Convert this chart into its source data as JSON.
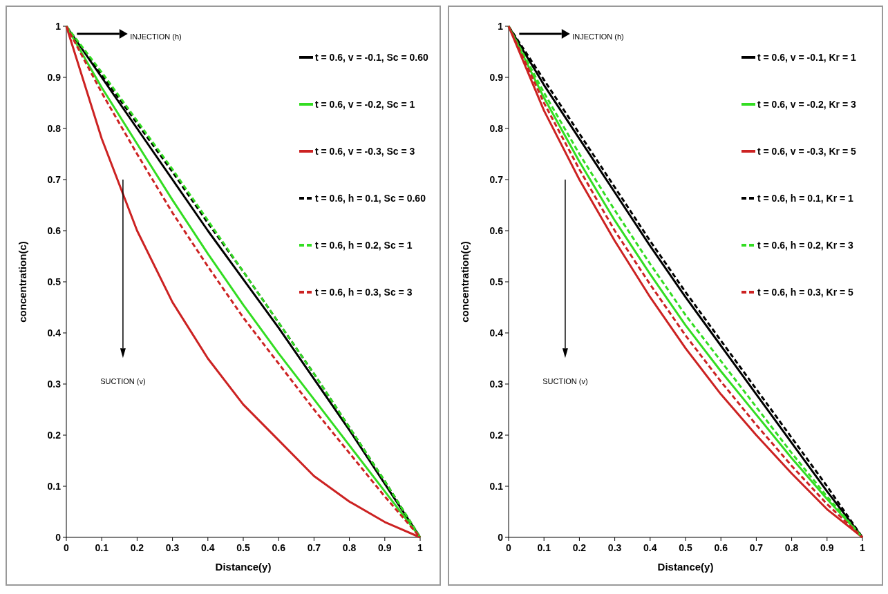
{
  "chart_data": [
    {
      "type": "line",
      "xlabel": "Distance(y)",
      "ylabel": "concentration(c)",
      "x": [
        0,
        0.1,
        0.2,
        0.3,
        0.4,
        0.5,
        0.6,
        0.7,
        0.8,
        0.9,
        1
      ],
      "xlim": [
        0,
        1
      ],
      "ylim": [
        0,
        1
      ],
      "xticks": [
        0,
        0.1,
        0.2,
        0.3,
        0.4,
        0.5,
        0.6,
        0.7,
        0.8,
        0.9,
        1
      ],
      "yticks": [
        0,
        0.1,
        0.2,
        0.3,
        0.4,
        0.5,
        0.6,
        0.7,
        0.8,
        0.9,
        1
      ],
      "legend": "top right",
      "grid": false,
      "annotations": [
        "INJECTION (h)",
        "SUCTION (v)"
      ],
      "series": [
        {
          "name": "t = 0.6, v = -0.1, Sc = 0.60",
          "color": "#000000",
          "line_style": "solid",
          "values": [
            1,
            0.9,
            0.8,
            0.7,
            0.6,
            0.505,
            0.41,
            0.31,
            0.21,
            0.105,
            0
          ]
        },
        {
          "name": "t = 0.6, v = -0.2, Sc = 1",
          "color": "#33dd22",
          "line_style": "solid",
          "values": [
            1,
            0.88,
            0.77,
            0.66,
            0.555,
            0.455,
            0.36,
            0.27,
            0.18,
            0.09,
            0
          ]
        },
        {
          "name": "t = 0.6, v = -0.3, Sc = 3",
          "color": "#cc2222",
          "line_style": "solid",
          "values": [
            1,
            0.78,
            0.6,
            0.46,
            0.35,
            0.26,
            0.19,
            0.12,
            0.07,
            0.03,
            0
          ]
        },
        {
          "name": "t = 0.6, h = 0.1, Sc = 0.60",
          "color": "#000000",
          "line_style": "dashed",
          "values": [
            1,
            0.905,
            0.81,
            0.715,
            0.615,
            0.52,
            0.42,
            0.32,
            0.215,
            0.11,
            0
          ]
        },
        {
          "name": "t = 0.6, h = 0.2, Sc = 1",
          "color": "#33dd22",
          "line_style": "dashed",
          "values": [
            1,
            0.91,
            0.815,
            0.72,
            0.62,
            0.52,
            0.42,
            0.32,
            0.215,
            0.11,
            0
          ]
        },
        {
          "name": "t = 0.6, h = 0.3, Sc = 3",
          "color": "#cc2222",
          "line_style": "dashed",
          "values": [
            1,
            0.87,
            0.75,
            0.635,
            0.53,
            0.43,
            0.34,
            0.25,
            0.165,
            0.08,
            0
          ]
        }
      ]
    },
    {
      "type": "line",
      "xlabel": "Distance(y)",
      "ylabel": "concentration(c)",
      "x": [
        0,
        0.1,
        0.2,
        0.3,
        0.4,
        0.5,
        0.6,
        0.7,
        0.8,
        0.9,
        1
      ],
      "xlim": [
        0,
        1
      ],
      "ylim": [
        0,
        1
      ],
      "xticks": [
        0,
        0.1,
        0.2,
        0.3,
        0.4,
        0.5,
        0.6,
        0.7,
        0.8,
        0.9,
        1
      ],
      "yticks": [
        0,
        0.1,
        0.2,
        0.3,
        0.4,
        0.5,
        0.6,
        0.7,
        0.8,
        0.9,
        1
      ],
      "legend": "top right",
      "grid": false,
      "annotations": [
        "INJECTION (h)",
        "SUCTION (v)"
      ],
      "series": [
        {
          "name": "t = 0.6, v = -0.1, Kr = 1",
          "color": "#000000",
          "line_style": "solid",
          "values": [
            1,
            0.885,
            0.78,
            0.675,
            0.57,
            0.47,
            0.375,
            0.28,
            0.185,
            0.09,
            0
          ]
        },
        {
          "name": "t = 0.6, v = -0.2, Kr = 3",
          "color": "#33dd22",
          "line_style": "solid",
          "values": [
            1,
            0.86,
            0.735,
            0.62,
            0.515,
            0.415,
            0.325,
            0.24,
            0.155,
            0.075,
            0
          ]
        },
        {
          "name": "t = 0.6, v = -0.3, Kr = 5",
          "color": "#cc2222",
          "line_style": "solid",
          "values": [
            1,
            0.835,
            0.7,
            0.58,
            0.47,
            0.37,
            0.28,
            0.2,
            0.125,
            0.055,
            0
          ]
        },
        {
          "name": "t = 0.6, h = 0.1, Kr = 1",
          "color": "#000000",
          "line_style": "dashed",
          "values": [
            1,
            0.895,
            0.79,
            0.685,
            0.58,
            0.48,
            0.385,
            0.29,
            0.195,
            0.1,
            0
          ]
        },
        {
          "name": "t = 0.6, h = 0.2, Kr = 3",
          "color": "#33dd22",
          "line_style": "dashed",
          "values": [
            1,
            0.87,
            0.75,
            0.64,
            0.535,
            0.435,
            0.345,
            0.255,
            0.165,
            0.08,
            0
          ]
        },
        {
          "name": "t = 0.6, h = 0.3, Kr = 5",
          "color": "#cc2222",
          "line_style": "dashed",
          "values": [
            1,
            0.85,
            0.72,
            0.6,
            0.495,
            0.395,
            0.305,
            0.22,
            0.14,
            0.065,
            0
          ]
        }
      ]
    }
  ]
}
